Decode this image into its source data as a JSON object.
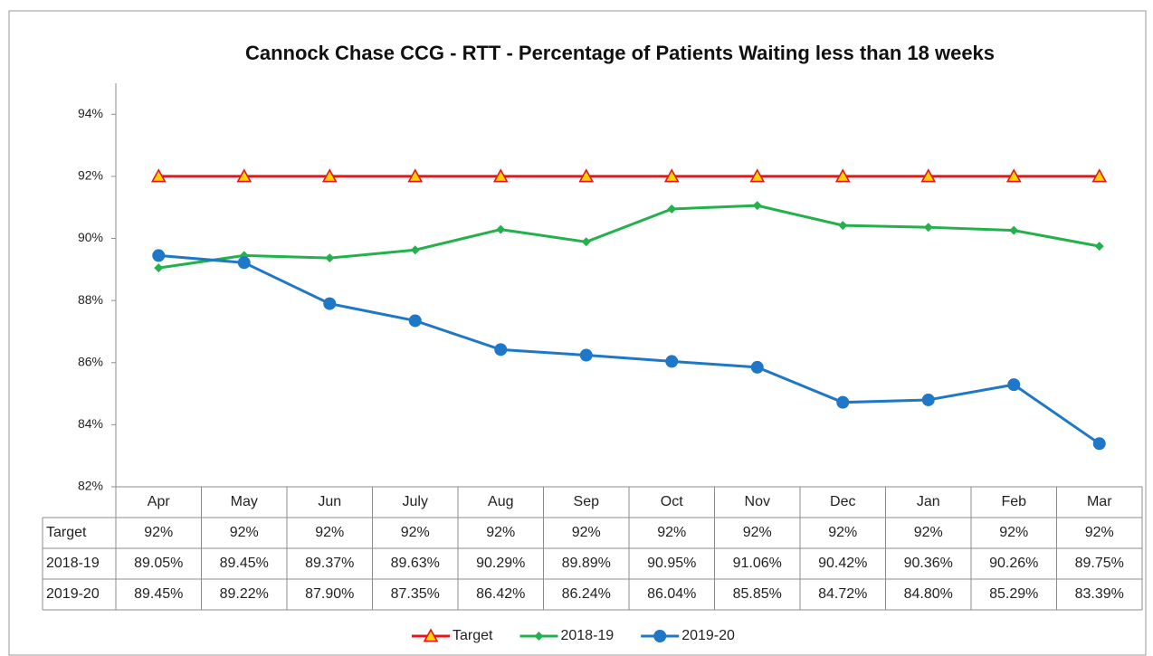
{
  "chart_data": {
    "type": "line",
    "title": "Cannock Chase CCG - RTT - Percentage of Patients Waiting less than 18 weeks",
    "categories": [
      "Apr",
      "May",
      "Jun",
      "July",
      "Aug",
      "Sep",
      "Oct",
      "Nov",
      "Dec",
      "Jan",
      "Feb",
      "Mar"
    ],
    "series": [
      {
        "name": "Target",
        "color": "#e8141b",
        "marker": "triangle",
        "values": [
          92,
          92,
          92,
          92,
          92,
          92,
          92,
          92,
          92,
          92,
          92,
          92
        ],
        "value_labels": [
          "92%",
          "92%",
          "92%",
          "92%",
          "92%",
          "92%",
          "92%",
          "92%",
          "92%",
          "92%",
          "92%",
          "92%"
        ]
      },
      {
        "name": "2018-19",
        "color": "#22b14c",
        "marker": "diamond",
        "values": [
          89.05,
          89.45,
          89.37,
          89.63,
          90.29,
          89.89,
          90.95,
          91.06,
          90.42,
          90.36,
          90.26,
          89.75
        ],
        "value_labels": [
          "89.05%",
          "89.45%",
          "89.37%",
          "89.63%",
          "90.29%",
          "89.89%",
          "90.95%",
          "91.06%",
          "90.42%",
          "90.36%",
          "90.26%",
          "89.75%"
        ]
      },
      {
        "name": "2019-20",
        "color": "#1f77c8",
        "marker": "circle",
        "values": [
          89.45,
          89.22,
          87.9,
          87.35,
          86.42,
          86.24,
          86.04,
          85.85,
          84.72,
          84.8,
          85.29,
          83.39
        ],
        "value_labels": [
          "89.45%",
          "89.22%",
          "87.90%",
          "87.35%",
          "86.42%",
          "86.24%",
          "86.04%",
          "85.85%",
          "84.72%",
          "84.80%",
          "85.29%",
          "83.39%"
        ]
      }
    ],
    "ylim": [
      82,
      95
    ],
    "yticks": [
      {
        "value": 82,
        "label": "82%"
      },
      {
        "value": 84,
        "label": "84%"
      },
      {
        "value": 86,
        "label": "86%"
      },
      {
        "value": 88,
        "label": "88%"
      },
      {
        "value": 90,
        "label": "90%"
      },
      {
        "value": 92,
        "label": "92%"
      },
      {
        "value": 94,
        "label": "94%"
      }
    ],
    "grid": false,
    "legend": "bottom"
  }
}
